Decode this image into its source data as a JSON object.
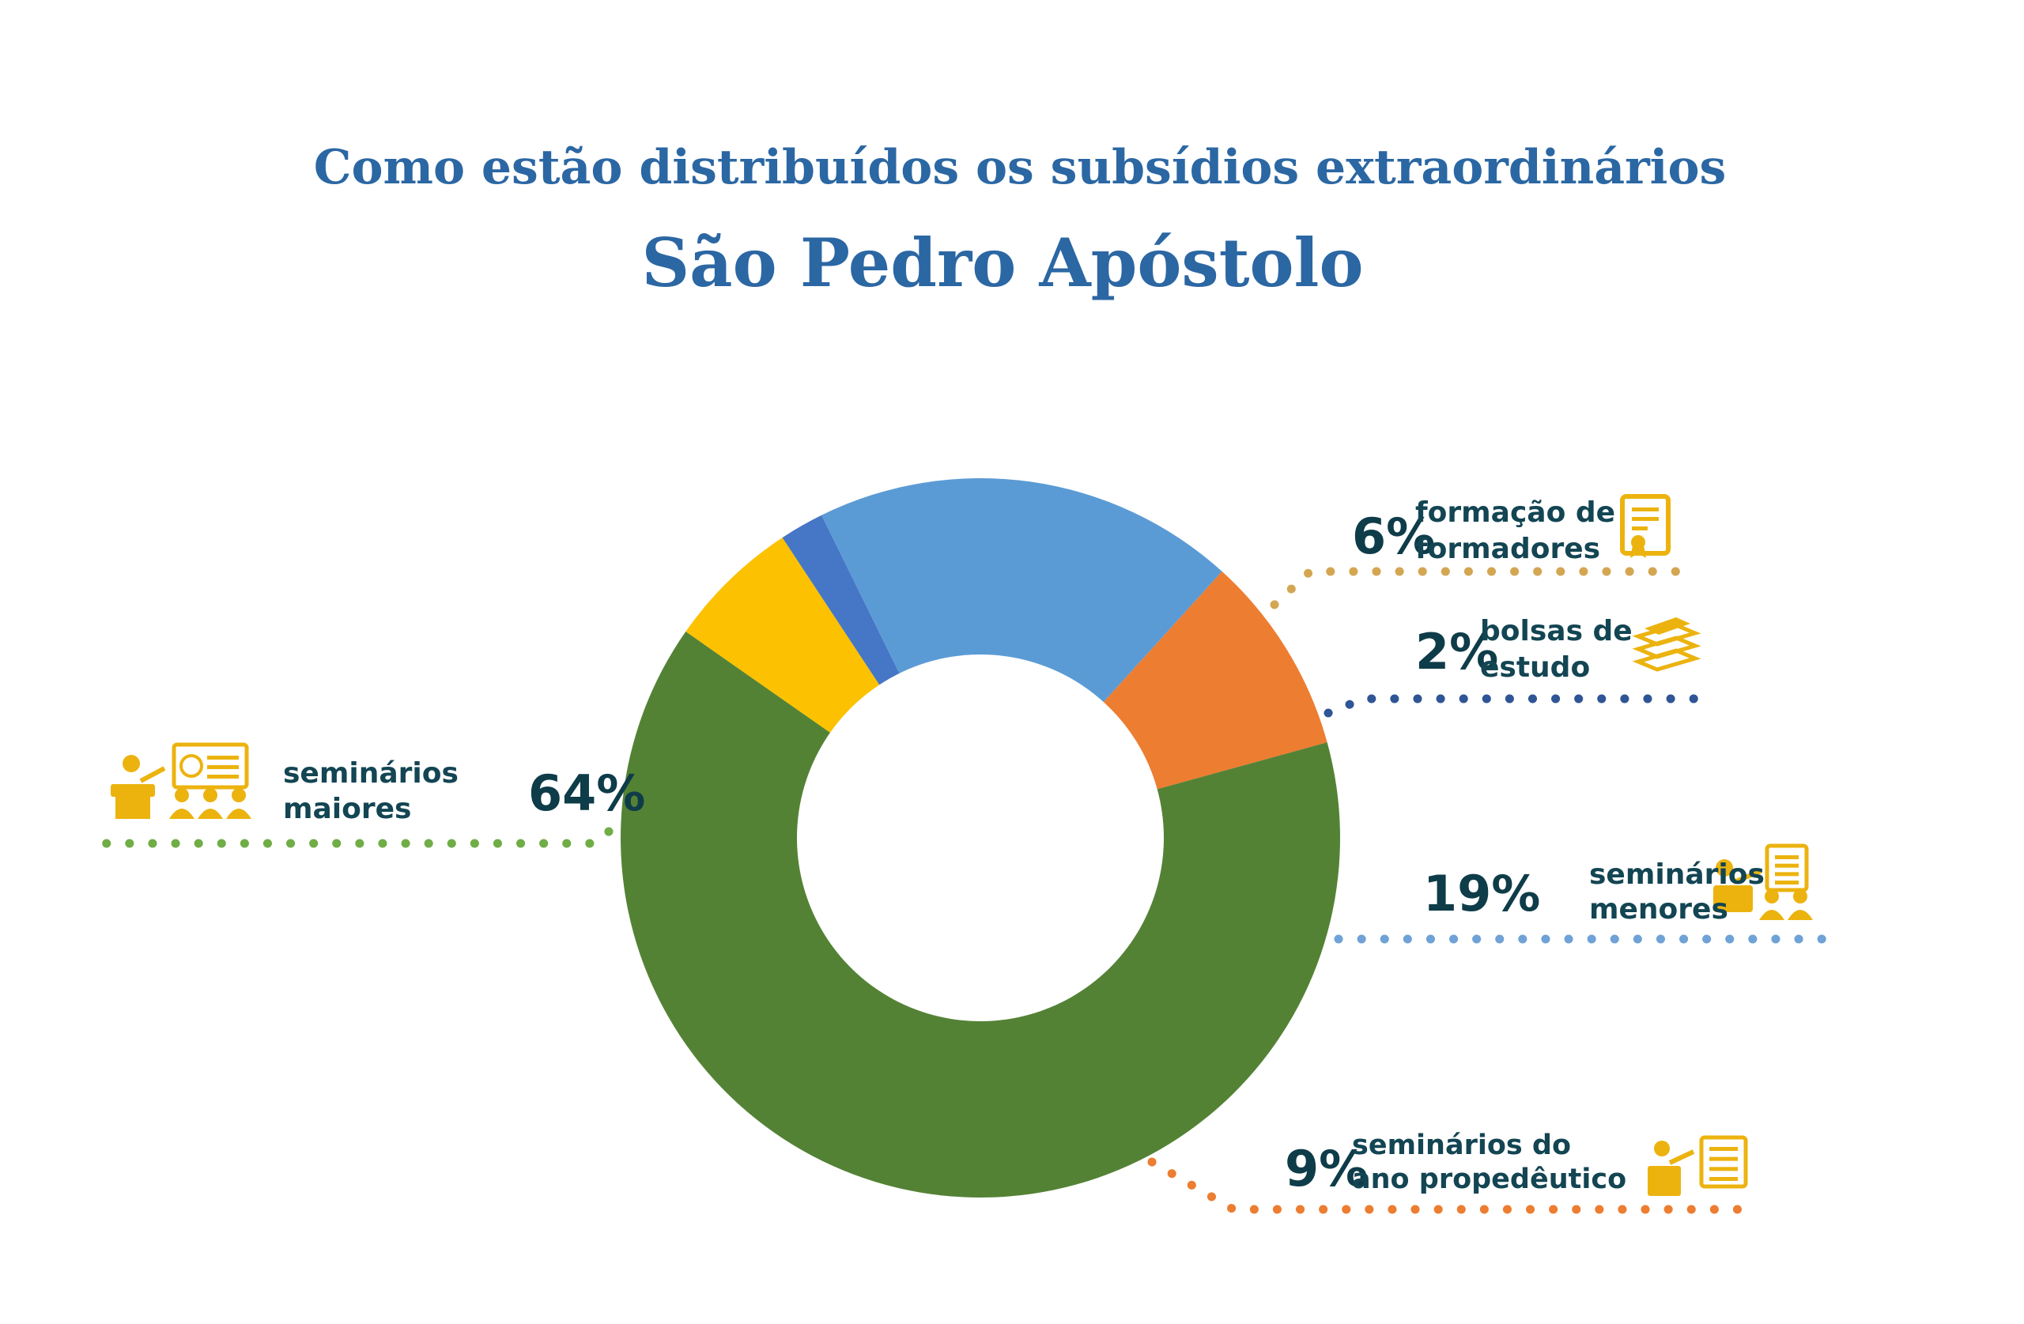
{
  "chart_data": {
    "type": "pie",
    "title": "Como estão distribuídos os subsídios extraordinários",
    "subtitle": "São Pedro Apóstolo",
    "slices": [
      {
        "label_lines": [
          "formação de",
          "formadores"
        ],
        "value": 6,
        "value_label": "6%",
        "color": "#fcc100",
        "leader_color": "#d4a652",
        "icon": "certificate-icon"
      },
      {
        "label_lines": [
          "bolsas de",
          "estudo"
        ],
        "value": 2,
        "value_label": "2%",
        "color": "#4676c6",
        "leader_color": "#2f5596",
        "icon": "books-icon"
      },
      {
        "label_lines": [
          "seminários",
          "menores"
        ],
        "value": 19,
        "value_label": "19%",
        "color": "#5b9bd5",
        "leader_color": "#6fa2d6",
        "icon": "teacher-audience-icon"
      },
      {
        "label_lines": [
          "seminários do",
          "ano propedêutico"
        ],
        "value": 9,
        "value_label": "9%",
        "color": "#ed7d31",
        "leader_color": "#ed7d31",
        "icon": "teacher-board-icon"
      },
      {
        "label_lines": [
          "seminários",
          "maiores"
        ],
        "value": 64,
        "value_label": "64%",
        "color": "#548235",
        "leader_color": "#70ad47",
        "icon": "presentation-icon"
      }
    ]
  },
  "colors": {
    "title": "#2b67a3",
    "label_text": "#134553",
    "icon": "#ecb30f"
  }
}
